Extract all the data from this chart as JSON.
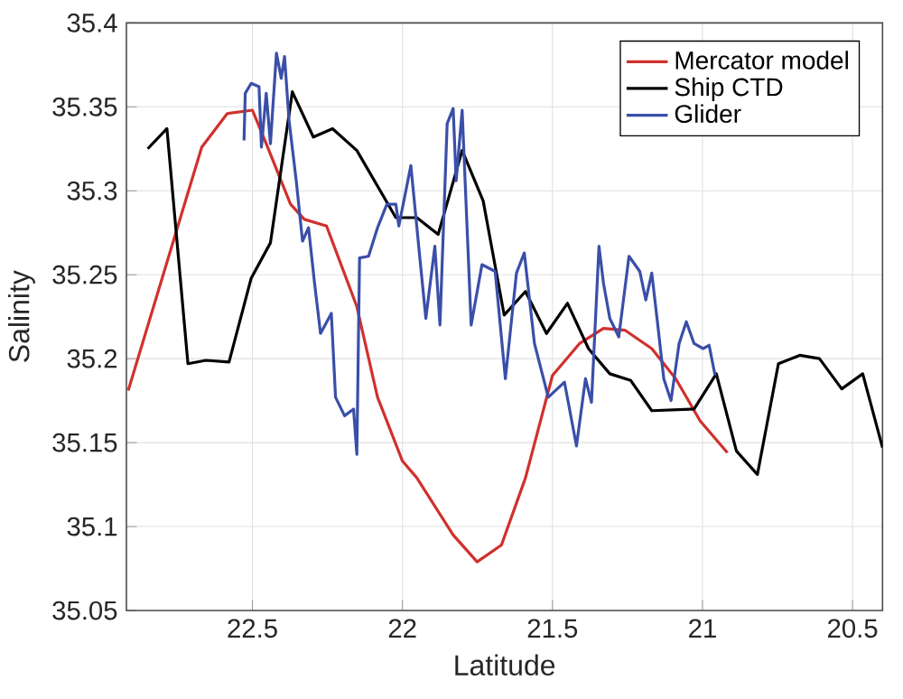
{
  "chart_data": {
    "type": "line",
    "xlabel": "Latitude",
    "ylabel": "Salinity",
    "xlim": [
      22.92,
      20.4
    ],
    "ylim": [
      35.05,
      35.4
    ],
    "xticks": [
      22.5,
      22,
      21.5,
      21,
      20.5
    ],
    "yticks": [
      35.05,
      35.1,
      35.15,
      35.2,
      35.25,
      35.3,
      35.35,
      35.4
    ],
    "grid": true,
    "legend": "top right",
    "series": [
      {
        "name": "Mercator model",
        "color": "#d0312d",
        "x": [
          22.914,
          22.669,
          22.584,
          22.5,
          22.454,
          22.373,
          22.327,
          22.253,
          22.152,
          22.083,
          22.0,
          21.952,
          21.831,
          21.751,
          21.67,
          21.59,
          21.5,
          21.41,
          21.33,
          21.259,
          21.169,
          21.089,
          21.008,
          20.917
        ],
        "values": [
          35.181,
          35.326,
          35.346,
          35.348,
          35.328,
          35.292,
          35.283,
          35.279,
          35.231,
          35.177,
          35.139,
          35.129,
          35.095,
          35.079,
          35.089,
          35.129,
          35.19,
          35.209,
          35.218,
          35.217,
          35.206,
          35.188,
          35.163,
          35.144
        ]
      },
      {
        "name": "Ship CTD",
        "color": "#000000",
        "x": [
          22.849,
          22.785,
          22.715,
          22.655,
          22.578,
          22.504,
          22.44,
          22.367,
          22.297,
          22.233,
          22.152,
          22.022,
          21.952,
          21.881,
          21.801,
          21.731,
          21.661,
          21.59,
          21.52,
          21.45,
          21.38,
          21.309,
          21.239,
          21.169,
          21.028,
          20.954,
          20.887,
          20.817,
          20.747,
          20.676,
          20.61,
          20.536,
          20.466,
          20.4
        ],
        "values": [
          35.325,
          35.337,
          35.197,
          35.199,
          35.198,
          35.248,
          35.269,
          35.359,
          35.332,
          35.337,
          35.324,
          35.284,
          35.284,
          35.274,
          35.324,
          35.294,
          35.226,
          35.24,
          35.215,
          35.233,
          35.206,
          35.191,
          35.187,
          35.169,
          35.17,
          35.191,
          35.145,
          35.131,
          35.197,
          35.202,
          35.2,
          35.182,
          35.191,
          35.147
        ]
      },
      {
        "name": "Glider",
        "color": "#3a4fa8",
        "x": [
          22.528,
          22.524,
          22.504,
          22.478,
          22.47,
          22.454,
          22.44,
          22.42,
          22.404,
          22.393,
          22.378,
          22.354,
          22.333,
          22.313,
          22.293,
          22.273,
          22.237,
          22.223,
          22.193,
          22.163,
          22.152,
          22.143,
          22.113,
          22.083,
          22.052,
          22.022,
          22.012,
          21.972,
          21.942,
          21.922,
          21.892,
          21.875,
          21.851,
          21.831,
          21.821,
          21.801,
          21.771,
          21.735,
          21.691,
          21.657,
          21.62,
          21.594,
          21.56,
          21.514,
          21.46,
          21.42,
          21.39,
          21.37,
          21.345,
          21.33,
          21.309,
          21.279,
          21.245,
          21.209,
          21.189,
          21.169,
          21.149,
          21.129,
          21.105,
          21.078,
          21.054,
          21.028,
          20.998,
          20.978,
          20.958
        ],
        "values": [
          35.33,
          35.358,
          35.364,
          35.362,
          35.326,
          35.358,
          35.328,
          35.382,
          35.367,
          35.38,
          35.342,
          35.306,
          35.27,
          35.278,
          35.245,
          35.215,
          35.227,
          35.177,
          35.166,
          35.17,
          35.143,
          35.26,
          35.261,
          35.278,
          35.292,
          35.292,
          35.279,
          35.315,
          35.26,
          35.224,
          35.267,
          35.22,
          35.34,
          35.349,
          35.306,
          35.348,
          35.22,
          35.256,
          35.252,
          35.188,
          35.251,
          35.263,
          35.209,
          35.177,
          35.186,
          35.148,
          35.188,
          35.174,
          35.267,
          35.245,
          35.224,
          35.213,
          35.261,
          35.252,
          35.235,
          35.251,
          35.22,
          35.188,
          35.175,
          35.209,
          35.222,
          35.209,
          35.206,
          35.208,
          35.19
        ]
      }
    ]
  }
}
